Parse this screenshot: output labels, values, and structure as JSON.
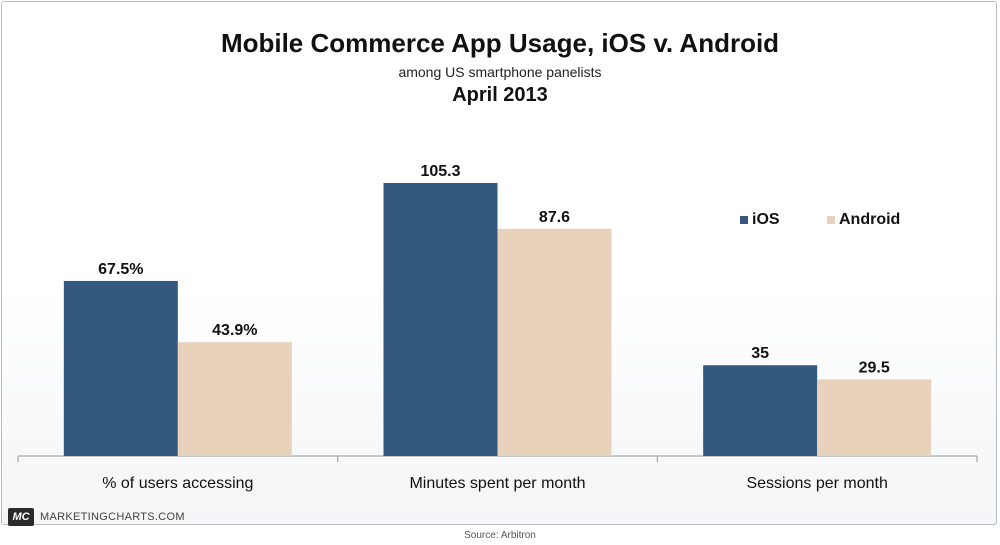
{
  "title": "Mobile Commerce App Usage, iOS v. Android",
  "subtitle": "among US smartphone panelists",
  "date": "April 2013",
  "brand": {
    "logo": "MC",
    "name": "MARKETINGCHARTS.COM"
  },
  "source": "Source: Arbitron",
  "chart_data": {
    "type": "bar",
    "categories": [
      "% of users accessing",
      "Minutes spent per month",
      "Sessions per month"
    ],
    "series": [
      {
        "name": "iOS",
        "values": [
          67.5,
          105.3,
          35
        ],
        "labels": [
          "67.5%",
          "105.3",
          "35"
        ],
        "color": "#34597f"
      },
      {
        "name": "Android",
        "values": [
          43.9,
          87.6,
          29.5
        ],
        "labels": [
          "43.9%",
          "87.6",
          "29.5"
        ],
        "color": "#e8d2bb"
      }
    ],
    "ylim": [
      0,
      118
    ],
    "legend": "right",
    "grid": false
  }
}
